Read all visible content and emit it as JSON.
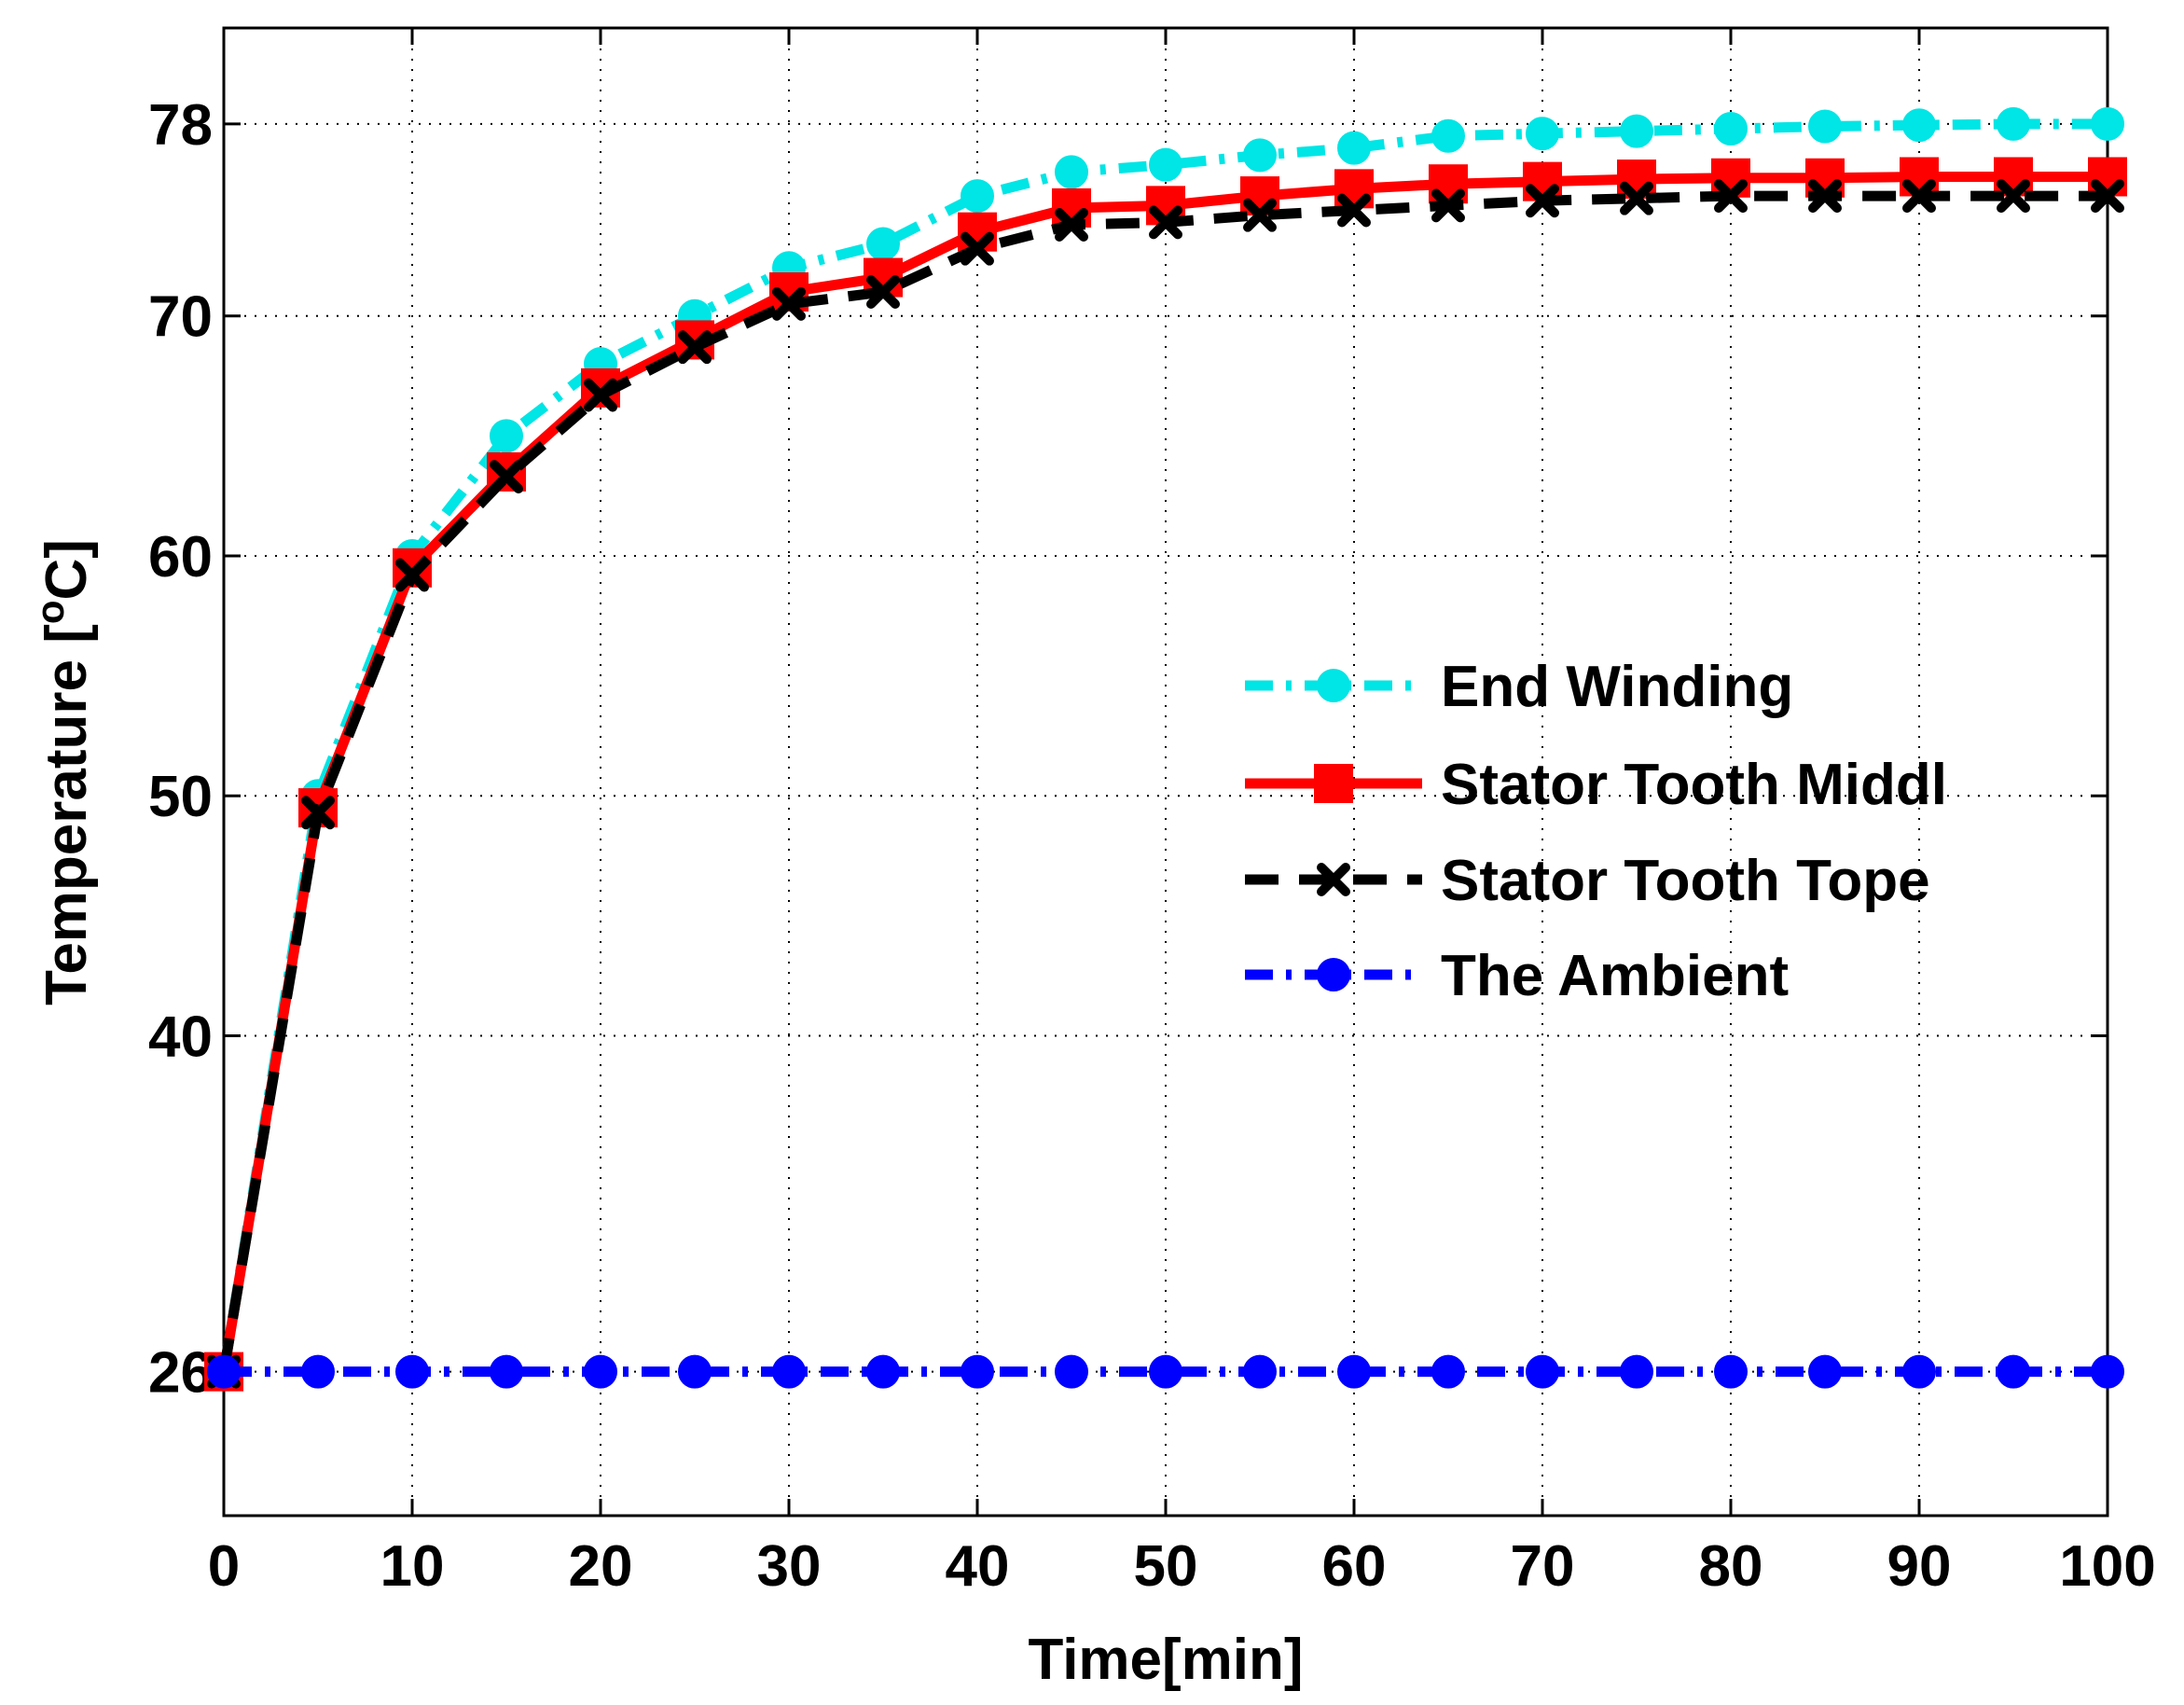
{
  "chart_data": {
    "type": "line",
    "title": "",
    "xlabel": "Time[min]",
    "ylabel": "Temperature [°C]",
    "ylabel_main": "Temperature [",
    "ylabel_sup": "o",
    "ylabel_end": "C]",
    "xlim": [
      0,
      100
    ],
    "ylim": [
      20,
      82
    ],
    "grid": true,
    "legend_position": "right",
    "x": [
      0,
      5,
      10,
      15,
      20,
      25,
      30,
      35,
      40,
      45,
      50,
      55,
      60,
      65,
      70,
      75,
      80,
      85,
      90,
      95,
      100
    ],
    "x_ticks": [
      0,
      10,
      20,
      30,
      40,
      50,
      60,
      70,
      80,
      90,
      100
    ],
    "x_tick_labels": [
      "0",
      "10",
      "20",
      "30",
      "40",
      "50",
      "60",
      "70",
      "80",
      "90",
      "100"
    ],
    "y_ticks": [
      26,
      40,
      50,
      60,
      70,
      78
    ],
    "y_tick_labels": [
      "26",
      "40",
      "50",
      "60",
      "70",
      "78"
    ],
    "series": [
      {
        "name": "End Winding",
        "color": "#00e5e5",
        "style": "dashdot",
        "marker": "circle",
        "values": [
          26,
          50,
          60,
          65,
          68,
          70,
          72,
          73,
          75,
          76,
          76.3,
          76.7,
          77,
          77.5,
          77.6,
          77.7,
          77.8,
          77.9,
          77.95,
          78,
          78
        ]
      },
      {
        "name": "Stator Tooth Middl",
        "color": "#ff0000",
        "style": "solid",
        "marker": "square",
        "values": [
          26,
          49.5,
          59.5,
          63.5,
          67,
          69,
          71,
          71.6,
          73.5,
          74.5,
          74.6,
          75,
          75.3,
          75.5,
          75.6,
          75.7,
          75.75,
          75.75,
          75.8,
          75.8,
          75.8
        ]
      },
      {
        "name": "Stator Tooth Tope",
        "color": "#000000",
        "style": "dashed",
        "marker": "x",
        "values": [
          26,
          49.3,
          59.2,
          63.3,
          66.7,
          68.7,
          70.5,
          71,
          72.8,
          73.8,
          73.9,
          74.2,
          74.4,
          74.6,
          74.8,
          74.9,
          75,
          75,
          75,
          75,
          75
        ]
      },
      {
        "name": "The Ambient",
        "color": "#0000ff",
        "style": "dashdot",
        "marker": "circle",
        "values": [
          26,
          26,
          26,
          26,
          26,
          26,
          26,
          26,
          26,
          26,
          26,
          26,
          26,
          26,
          26,
          26,
          26,
          26,
          26,
          26,
          26
        ]
      }
    ]
  }
}
